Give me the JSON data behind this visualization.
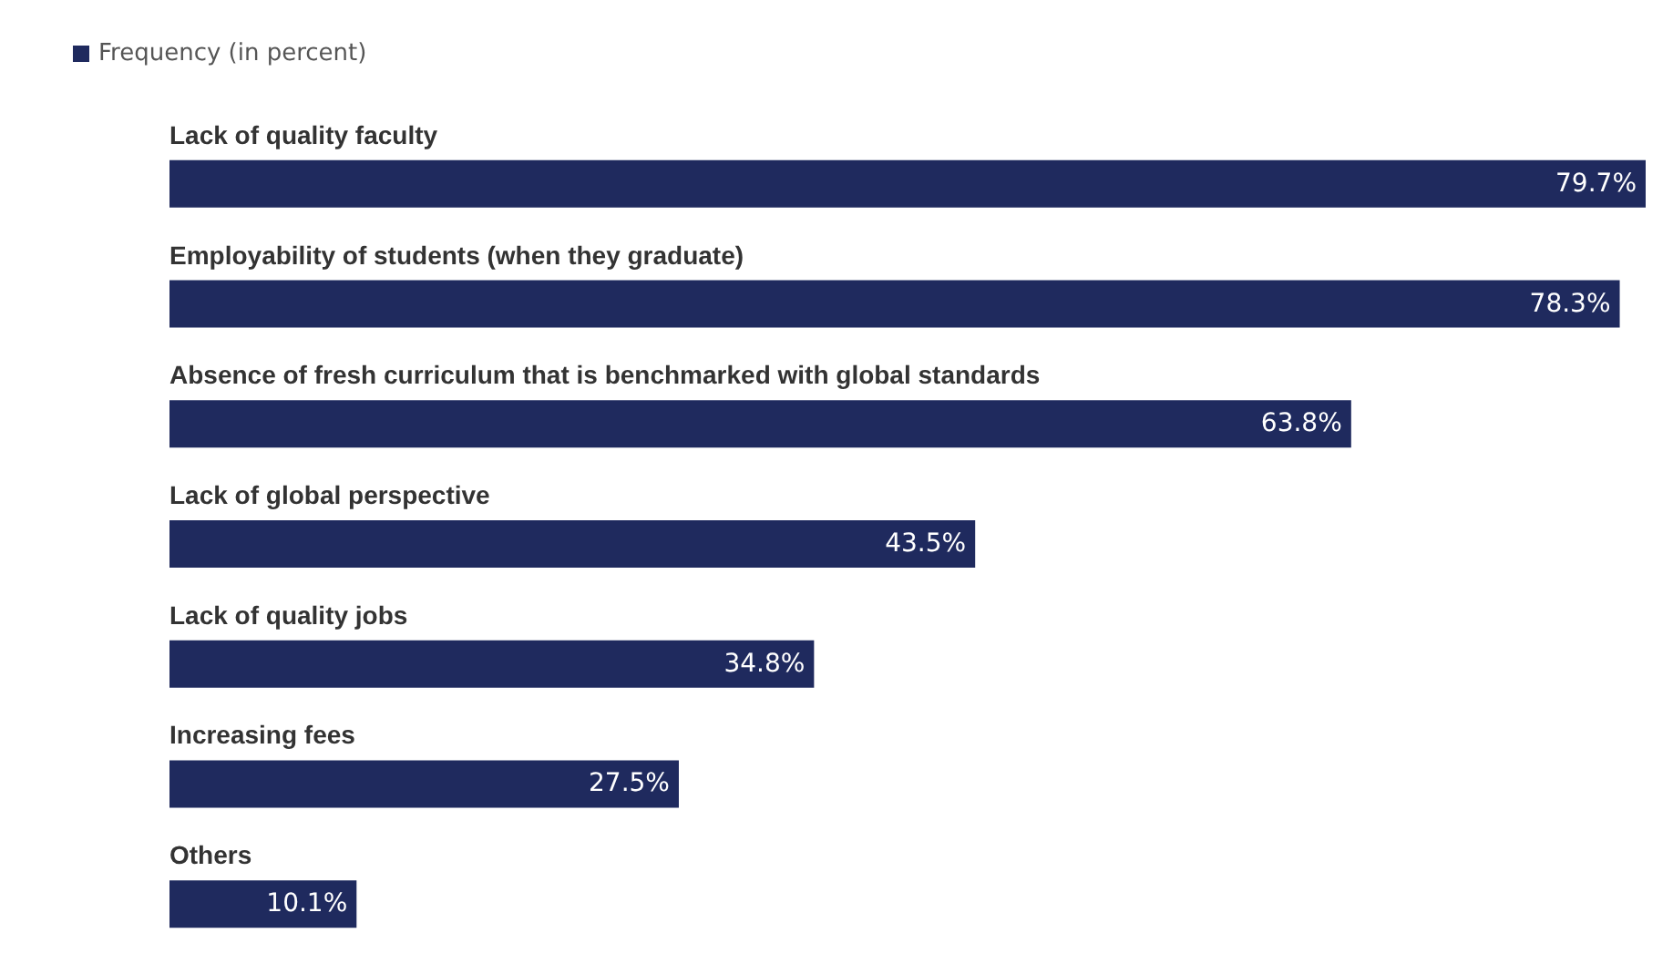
{
  "chart_data": {
    "type": "bar",
    "orientation": "horizontal",
    "legend": "top left",
    "categories": [
      "Lack of quality faculty",
      "Employability of students (when they graduate)",
      "Absence of fresh curriculum that is benchmarked with global standards",
      "Lack of global perspective",
      "Lack of quality jobs",
      "Increasing fees",
      "Others"
    ],
    "series": [
      {
        "name": "Frequency (in percent)",
        "color": "#1f2a5e",
        "values": [
          79.7,
          78.3,
          63.8,
          43.5,
          34.8,
          27.5,
          10.1
        ],
        "value_labels": [
          "79.7%",
          "78.3%",
          "63.8%",
          "43.5%",
          "34.8%",
          "27.5%",
          "10.1%"
        ]
      }
    ]
  }
}
